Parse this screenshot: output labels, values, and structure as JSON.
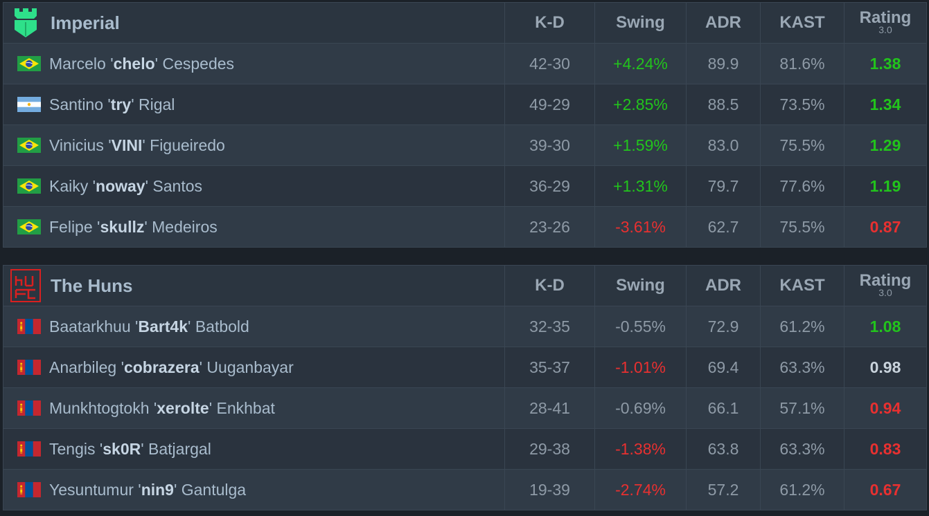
{
  "columns": {
    "kd": "K-D",
    "swing": "Swing",
    "adr": "ADR",
    "kast": "KAST",
    "rating": "Rating",
    "rating_sub": "3.0"
  },
  "teams": [
    {
      "name": "Imperial",
      "logo_icon": "imperial-castle-icon",
      "players": [
        {
          "flag": "brazil-flag-icon",
          "first": "Marcelo '",
          "nick": "chelo",
          "last": "' Cespedes",
          "kd": "42-30",
          "swing": "+4.24%",
          "adr": "89.9",
          "kast": "81.6%",
          "rating": "1.38"
        },
        {
          "flag": "argentina-flag-icon",
          "first": "Santino '",
          "nick": "try",
          "last": "' Rigal",
          "kd": "49-29",
          "swing": "+2.85%",
          "adr": "88.5",
          "kast": "73.5%",
          "rating": "1.34"
        },
        {
          "flag": "brazil-flag-icon",
          "first": "Vinicius '",
          "nick": "VINI",
          "last": "' Figueiredo",
          "kd": "39-30",
          "swing": "+1.59%",
          "adr": "83.0",
          "kast": "75.5%",
          "rating": "1.29"
        },
        {
          "flag": "brazil-flag-icon",
          "first": "Kaiky '",
          "nick": "noway",
          "last": "' Santos",
          "kd": "36-29",
          "swing": "+1.31%",
          "adr": "79.7",
          "kast": "77.6%",
          "rating": "1.19"
        },
        {
          "flag": "brazil-flag-icon",
          "first": "Felipe '",
          "nick": "skullz",
          "last": "' Medeiros",
          "kd": "23-26",
          "swing": "-3.61%",
          "adr": "62.7",
          "kast": "75.5%",
          "rating": "0.87"
        }
      ]
    },
    {
      "name": "The Huns",
      "logo_icon": "huns-logo-icon",
      "players": [
        {
          "flag": "mongolia-flag-icon",
          "first": "Baatarkhuu '",
          "nick": "Bart4k",
          "last": "' Batbold",
          "kd": "32-35",
          "swing": "-0.55%",
          "adr": "72.9",
          "kast": "61.2%",
          "rating": "1.08"
        },
        {
          "flag": "mongolia-flag-icon",
          "first": "Anarbileg '",
          "nick": "cobrazera",
          "last": "' Uuganbayar",
          "kd": "35-37",
          "swing": "-1.01%",
          "adr": "69.4",
          "kast": "63.3%",
          "rating": "0.98"
        },
        {
          "flag": "mongolia-flag-icon",
          "first": "Munkhtogtokh '",
          "nick": "xerolte",
          "last": "' Enkhbat",
          "kd": "28-41",
          "swing": "-0.69%",
          "adr": "66.1",
          "kast": "57.1%",
          "rating": "0.94"
        },
        {
          "flag": "mongolia-flag-icon",
          "first": "Tengis '",
          "nick": "sk0R",
          "last": "' Batjargal",
          "kd": "29-38",
          "swing": "-1.38%",
          "adr": "63.8",
          "kast": "63.3%",
          "rating": "0.83"
        },
        {
          "flag": "mongolia-flag-icon",
          "first": "Yesuntumur '",
          "nick": "nin9",
          "last": "' Gantulga",
          "kd": "19-39",
          "swing": "-2.74%",
          "adr": "57.2",
          "kast": "61.2%",
          "rating": "0.67"
        }
      ]
    }
  ],
  "colors": {
    "positive": "#22c41c",
    "negative": "#e83030",
    "neutral": "#8e9aa6"
  }
}
